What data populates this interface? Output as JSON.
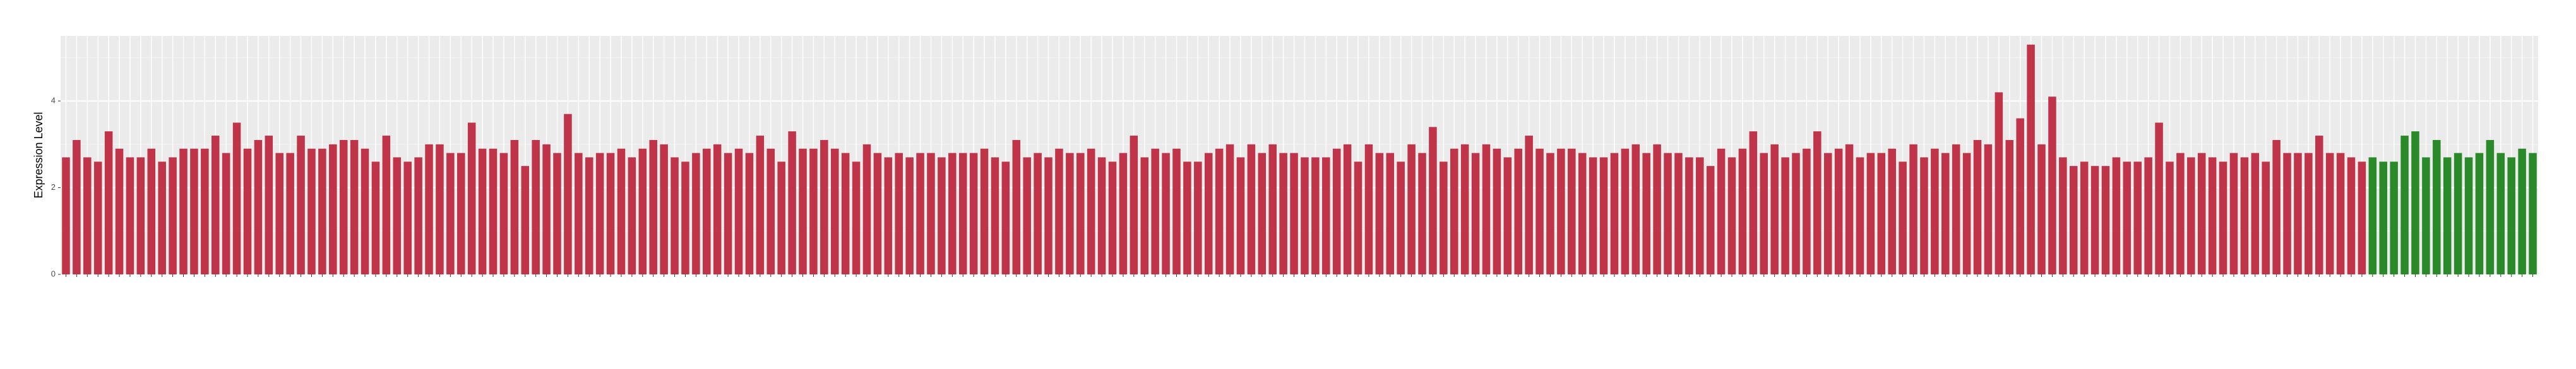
{
  "chart_data": {
    "type": "bar",
    "y_label": "Expression Level",
    "categories": [
      null,
      null,
      null,
      null,
      null,
      null,
      null,
      null,
      null,
      null,
      null,
      null,
      null,
      null,
      null,
      null,
      null,
      null,
      null,
      null,
      null,
      null,
      null,
      null,
      null,
      null,
      null,
      null,
      null,
      null,
      null,
      null,
      null,
      null,
      null,
      null,
      null,
      null,
      null,
      null,
      null,
      null,
      null,
      null,
      null,
      null,
      null,
      null,
      null,
      null,
      null,
      null,
      null,
      null,
      null,
      null,
      null,
      null,
      null,
      null,
      null,
      null,
      null,
      null,
      null,
      null,
      null,
      null,
      null,
      null,
      null,
      null,
      null,
      null,
      null,
      null,
      null,
      null,
      null,
      null,
      null,
      null,
      null,
      null,
      null,
      null,
      null,
      null,
      null,
      null,
      null,
      null,
      null,
      null,
      null,
      null,
      null,
      null,
      null,
      null,
      null,
      null,
      null,
      null,
      null,
      null,
      null,
      null,
      null,
      null,
      null,
      null,
      null,
      null,
      null,
      null,
      null,
      null,
      null,
      null,
      null,
      null,
      null,
      null,
      null,
      null,
      null,
      null,
      null,
      null,
      null,
      null,
      null,
      null,
      null,
      null,
      null,
      null,
      null,
      null,
      null,
      null,
      null,
      null,
      null,
      null,
      null,
      null,
      null,
      null,
      null,
      null,
      null,
      null,
      null,
      null,
      null,
      null,
      null,
      null,
      null,
      null,
      null,
      null,
      null,
      null,
      null,
      null,
      null,
      null,
      null,
      null,
      null,
      null,
      null,
      null,
      null,
      null,
      null,
      null,
      null,
      null,
      null,
      null,
      null,
      null,
      null,
      null,
      null,
      null,
      null,
      null,
      null,
      null,
      null,
      null,
      null,
      null,
      null,
      null,
      null,
      null,
      null,
      null,
      null,
      null,
      null,
      null,
      null,
      null,
      null,
      null,
      null,
      null,
      null,
      null,
      null,
      null,
      null,
      null,
      null,
      null,
      null,
      null,
      null,
      null,
      null,
      null,
      null,
      null,
      null,
      null
    ],
    "values": [
      2.7,
      3.1,
      2.7,
      2.6,
      3.3,
      2.9,
      2.7,
      2.7,
      2.9,
      2.6,
      2.7,
      2.9,
      2.9,
      2.9,
      3.2,
      2.8,
      3.5,
      2.9,
      3.1,
      3.2,
      2.8,
      2.8,
      3.2,
      2.9,
      2.9,
      3.0,
      3.1,
      3.1,
      2.9,
      2.6,
      3.2,
      2.7,
      2.6,
      2.7,
      3.0,
      3.0,
      2.8,
      2.8,
      3.5,
      2.9,
      2.9,
      2.8,
      3.1,
      2.5,
      3.1,
      3.0,
      2.8,
      3.7,
      2.8,
      2.7,
      2.8,
      2.8,
      2.9,
      2.7,
      2.9,
      3.1,
      3.0,
      2.7,
      2.6,
      2.8,
      2.9,
      3.0,
      2.8,
      2.9,
      2.8,
      3.2,
      2.9,
      2.6,
      3.3,
      2.9,
      2.9,
      3.1,
      2.9,
      2.8,
      2.6,
      3.0,
      2.8,
      2.7,
      2.8,
      2.7,
      2.8,
      2.8,
      2.7,
      2.8,
      2.8,
      2.8,
      2.9,
      2.7,
      2.6,
      3.1,
      2.7,
      2.8,
      2.7,
      2.9,
      2.8,
      2.8,
      2.9,
      2.7,
      2.6,
      2.8,
      3.2,
      2.7,
      2.9,
      2.8,
      2.9,
      2.6,
      2.6,
      2.8,
      2.9,
      3.0,
      2.7,
      3.0,
      2.8,
      3.0,
      2.8,
      2.8,
      2.7,
      2.7,
      2.7,
      2.9,
      3.0,
      2.6,
      3.0,
      2.8,
      2.8,
      2.6,
      3.0,
      2.8,
      3.4,
      2.6,
      2.9,
      3.0,
      2.8,
      3.0,
      2.9,
      2.7,
      2.9,
      3.2,
      2.9,
      2.8,
      2.9,
      2.9,
      2.8,
      2.7,
      2.7,
      2.8,
      2.9,
      3.0,
      2.8,
      3.0,
      2.8,
      2.8,
      2.7,
      2.7,
      2.5,
      2.9,
      2.7,
      2.9,
      3.3,
      2.8,
      3.0,
      2.7,
      2.8,
      2.9,
      3.3,
      2.8,
      2.9,
      3.0,
      2.7,
      2.8,
      2.8,
      2.9,
      2.6,
      3.0,
      2.7,
      2.9,
      2.8,
      3.0,
      2.8,
      3.1,
      3.0,
      4.2,
      3.1,
      3.6,
      5.3,
      3.0,
      4.1,
      2.7,
      2.5,
      2.6,
      2.5,
      2.5,
      2.7,
      2.6,
      2.6,
      2.7,
      3.5,
      2.6,
      2.8,
      2.7,
      2.8,
      2.7,
      2.6,
      2.8,
      2.7,
      2.8,
      2.6,
      3.1,
      2.8,
      2.8,
      2.8,
      3.2,
      2.8,
      2.8,
      2.7,
      2.6,
      2.7,
      2.6,
      2.6,
      3.2,
      3.3,
      2.7,
      3.1,
      2.7,
      2.8,
      2.7,
      2.8,
      3.1,
      2.8,
      2.7,
      2.9,
      2.8
    ],
    "colors": [
      "#c0344a",
      "#c0344a",
      "#c0344a",
      "#c0344a",
      "#c0344a",
      "#c0344a",
      "#c0344a",
      "#c0344a",
      "#c0344a",
      "#c0344a",
      "#c0344a",
      "#c0344a",
      "#c0344a",
      "#c0344a",
      "#c0344a",
      "#c0344a",
      "#c0344a",
      "#c0344a",
      "#c0344a",
      "#c0344a",
      "#c0344a",
      "#c0344a",
      "#c0344a",
      "#c0344a",
      "#c0344a",
      "#c0344a",
      "#c0344a",
      "#c0344a",
      "#c0344a",
      "#c0344a",
      "#c0344a",
      "#c0344a",
      "#c0344a",
      "#c0344a",
      "#c0344a",
      "#c0344a",
      "#c0344a",
      "#c0344a",
      "#c0344a",
      "#c0344a",
      "#c0344a",
      "#c0344a",
      "#c0344a",
      "#c0344a",
      "#c0344a",
      "#c0344a",
      "#c0344a",
      "#c0344a",
      "#c0344a",
      "#c0344a",
      "#c0344a",
      "#c0344a",
      "#c0344a",
      "#c0344a",
      "#c0344a",
      "#c0344a",
      "#c0344a",
      "#c0344a",
      "#c0344a",
      "#c0344a",
      "#c0344a",
      "#c0344a",
      "#c0344a",
      "#c0344a",
      "#c0344a",
      "#c0344a",
      "#c0344a",
      "#c0344a",
      "#c0344a",
      "#c0344a",
      "#c0344a",
      "#c0344a",
      "#c0344a",
      "#c0344a",
      "#c0344a",
      "#c0344a",
      "#c0344a",
      "#c0344a",
      "#c0344a",
      "#c0344a",
      "#c0344a",
      "#c0344a",
      "#c0344a",
      "#c0344a",
      "#c0344a",
      "#c0344a",
      "#c0344a",
      "#c0344a",
      "#c0344a",
      "#c0344a",
      "#c0344a",
      "#c0344a",
      "#c0344a",
      "#c0344a",
      "#c0344a",
      "#c0344a",
      "#c0344a",
      "#c0344a",
      "#c0344a",
      "#c0344a",
      "#c0344a",
      "#c0344a",
      "#c0344a",
      "#c0344a",
      "#c0344a",
      "#c0344a",
      "#c0344a",
      "#c0344a",
      "#c0344a",
      "#c0344a",
      "#c0344a",
      "#c0344a",
      "#c0344a",
      "#c0344a",
      "#c0344a",
      "#c0344a",
      "#c0344a",
      "#c0344a",
      "#c0344a",
      "#c0344a",
      "#c0344a",
      "#c0344a",
      "#c0344a",
      "#c0344a",
      "#c0344a",
      "#c0344a",
      "#c0344a",
      "#c0344a",
      "#c0344a",
      "#c0344a",
      "#c0344a",
      "#c0344a",
      "#c0344a",
      "#c0344a",
      "#c0344a",
      "#c0344a",
      "#c0344a",
      "#c0344a",
      "#c0344a",
      "#c0344a",
      "#c0344a",
      "#c0344a",
      "#c0344a",
      "#c0344a",
      "#c0344a",
      "#c0344a",
      "#c0344a",
      "#c0344a",
      "#c0344a",
      "#c0344a",
      "#c0344a",
      "#c0344a",
      "#c0344a",
      "#c0344a",
      "#c0344a",
      "#c0344a",
      "#c0344a",
      "#c0344a",
      "#c0344a",
      "#c0344a",
      "#c0344a",
      "#c0344a",
      "#c0344a",
      "#c0344a",
      "#c0344a",
      "#c0344a",
      "#c0344a",
      "#c0344a",
      "#c0344a",
      "#c0344a",
      "#c0344a",
      "#c0344a",
      "#c0344a",
      "#c0344a",
      "#c0344a",
      "#c0344a",
      "#c0344a",
      "#c0344a",
      "#c0344a",
      "#c0344a",
      "#c0344a",
      "#c0344a",
      "#c0344a",
      "#c0344a",
      "#c0344a",
      "#c0344a",
      "#c0344a",
      "#c0344a",
      "#c0344a",
      "#c0344a",
      "#c0344a",
      "#c0344a",
      "#c0344a",
      "#c0344a",
      "#c0344a",
      "#c0344a",
      "#c0344a",
      "#c0344a",
      "#c0344a",
      "#c0344a",
      "#c0344a",
      "#c0344a",
      "#c0344a",
      "#c0344a",
      "#c0344a",
      "#c0344a",
      "#c0344a",
      "#c0344a",
      "#c0344a",
      "#c0344a",
      "#c0344a",
      "#c0344a",
      "#c0344a",
      "#c0344a",
      "#c0344a",
      "#c0344a",
      "#2a8a2a",
      "#2a8a2a",
      "#2a8a2a",
      "#2a8a2a",
      "#2a8a2a",
      "#2a8a2a",
      "#2a8a2a",
      "#2a8a2a",
      "#2a8a2a",
      "#2a8a2a",
      "#2a8a2a",
      "#2a8a2a",
      "#2a8a2a",
      "#2a8a2a",
      "#2a8a2a",
      "#2a8a2a",
      "#2a8a2a",
      "#2a8a2a",
      "#2a8a2a",
      "#2a8a2a",
      "#2a8a2a",
      "#2a8a2a",
      "#2a8a2a",
      "#2a8a2a"
    ],
    "ylim": [
      0,
      5.5
    ],
    "yticks": [
      0,
      2,
      4
    ],
    "grid": true
  }
}
